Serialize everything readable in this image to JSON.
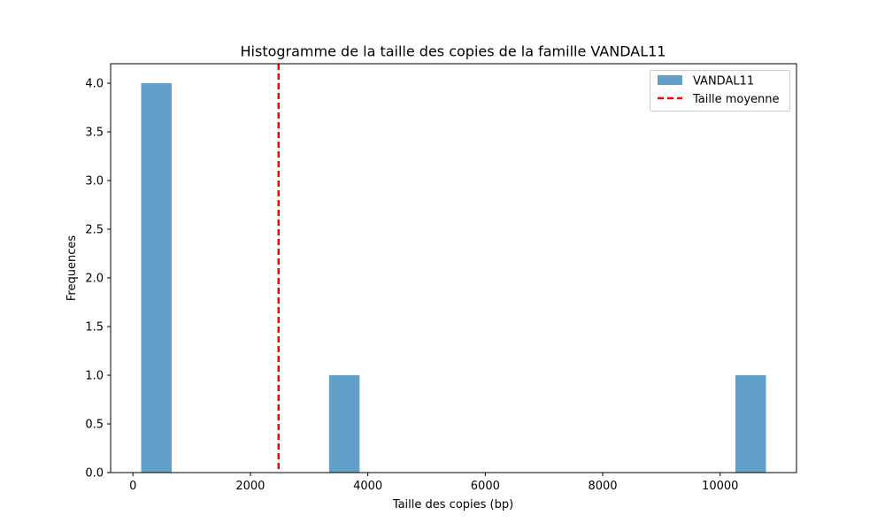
{
  "chart_data": {
    "type": "bar",
    "title": "Histogramme de la taille des copies de la famille VANDAL11",
    "xlabel": "Taille des copies (bp)",
    "ylabel": "Frequences",
    "xlim": [
      -380,
      11300
    ],
    "ylim": [
      0,
      4.2
    ],
    "x_ticks": [
      0,
      2000,
      4000,
      6000,
      8000,
      10000
    ],
    "x_tick_labels": [
      "0",
      "2000",
      "4000",
      "6000",
      "8000",
      "10000"
    ],
    "y_ticks": [
      0,
      0.5,
      1.0,
      1.5,
      2.0,
      2.5,
      3.0,
      3.5,
      4.0
    ],
    "y_tick_labels": [
      "0.0",
      "0.5",
      "1.0",
      "1.5",
      "2.0",
      "2.5",
      "3.0",
      "3.5",
      "4.0"
    ],
    "bars": [
      {
        "x0": 140,
        "x1": 660,
        "value": 4
      },
      {
        "x0": 3340,
        "x1": 3860,
        "value": 1
      },
      {
        "x0": 10260,
        "x1": 10780,
        "value": 1
      }
    ],
    "mean_line": {
      "x": 2480,
      "label": "Taille moyenne",
      "color": "#ff0000",
      "style": "dashed"
    },
    "series": [
      {
        "name": "VANDAL11",
        "color": "#62a0ca"
      }
    ],
    "legend": {
      "position": "top-right",
      "entries": [
        "VANDAL11",
        "Taille moyenne"
      ]
    },
    "grid": false
  }
}
